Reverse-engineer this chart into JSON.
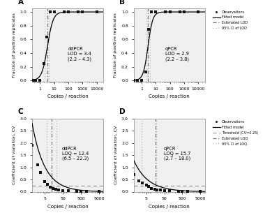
{
  "panel_A": {
    "label": "A",
    "type": "LOD",
    "method": "ddPCR",
    "lod": 3.4,
    "lod_ci_low": 2.2,
    "lod_ci_high": 4.3,
    "annotation": "ddPCR\nLOD = 3.4\n(2.2 – 4.3)",
    "obs_x": [
      0.3,
      0.5,
      1.0,
      1.0,
      2.0,
      3.0,
      5.0,
      10.0,
      50.0,
      100.0,
      500.0,
      1000.0,
      10000.0
    ],
    "obs_y": [
      0.0,
      0.0,
      0.0,
      0.0,
      0.25,
      0.63,
      1.0,
      1.0,
      1.0,
      1.0,
      1.0,
      1.0,
      1.0
    ],
    "xlim_log": [
      0.28,
      30000
    ],
    "xticks": [
      1,
      10,
      100,
      1000,
      10000
    ],
    "xlabel": "Copies / reaction",
    "ylabel": "Fraction of positive replicates",
    "ylim": [
      -0.02,
      1.05
    ],
    "yticks": [
      0.0,
      0.2,
      0.4,
      0.6,
      0.8,
      1.0
    ],
    "logistic_k": 5.0,
    "ann_x": 0.5,
    "ann_y": 0.38
  },
  "panel_B": {
    "label": "B",
    "type": "LOD",
    "method": "qPCR",
    "lod": 2.9,
    "lod_ci_low": 2.2,
    "lod_ci_high": 3.8,
    "annotation": "qPCR\nLOD = 2.9\n(2.2 – 3.8)",
    "obs_x": [
      0.3,
      0.5,
      1.0,
      1.0,
      2.0,
      3.0,
      5.0,
      10.0,
      50.0,
      100.0,
      500.0,
      1000.0,
      10000.0
    ],
    "obs_y": [
      0.0,
      0.0,
      0.0,
      0.0,
      0.12,
      0.75,
      1.0,
      1.0,
      1.0,
      1.0,
      1.0,
      1.0,
      1.0
    ],
    "xlim_log": [
      0.28,
      30000
    ],
    "xticks": [
      1,
      10,
      100,
      1000,
      10000
    ],
    "xlabel": "Copies / reaction",
    "ylabel": "Fraction of positive replicates",
    "ylim": [
      -0.02,
      1.05
    ],
    "yticks": [
      0.0,
      0.2,
      0.4,
      0.6,
      0.8,
      1.0
    ],
    "logistic_k": 6.0,
    "ann_x": 0.44,
    "ann_y": 0.38,
    "legend_items": [
      "Observations",
      "Fitted model",
      "Estimated LOD",
      "95% CI of LOD"
    ]
  },
  "panel_C": {
    "label": "C",
    "type": "LOQ",
    "method": "ddPCR",
    "loq": 12.4,
    "loq_ci_low": 6.5,
    "loq_ci_high": 22.3,
    "threshold": 0.25,
    "annotation": "ddPCR\nLOQ = 12.4\n(6.5 – 22.3)",
    "obs_x": [
      1,
      2,
      3,
      5,
      7,
      10,
      15,
      20,
      30,
      50,
      100,
      300,
      500,
      1000,
      5000
    ],
    "obs_y": [
      1.9,
      1.1,
      0.78,
      0.42,
      0.3,
      0.18,
      0.12,
      0.1,
      0.08,
      0.055,
      0.04,
      0.025,
      0.02,
      0.015,
      0.008
    ],
    "xlim_log": [
      1.0,
      9000
    ],
    "xticks": [
      5,
      50,
      500,
      5000
    ],
    "xlabel": "Copies / reaction",
    "ylabel": "Coefficient of variation, CV",
    "ylim": [
      0,
      3.0
    ],
    "yticks": [
      0.0,
      0.5,
      1.0,
      1.5,
      2.0,
      2.5,
      3.0
    ],
    "cv_scale": 2.8,
    "cv_power": 0.62,
    "ann_x": 0.42,
    "ann_y": 0.52
  },
  "panel_D": {
    "label": "D",
    "type": "LOQ",
    "method": "qPCR",
    "loq": 15.7,
    "loq_ci_low": 2.7,
    "loq_ci_high": 18.0,
    "threshold": 0.25,
    "annotation": "qPCR\nLOQ = 15.7\n(2.7 – 18.0)",
    "obs_x": [
      1,
      2,
      3,
      5,
      7,
      10,
      15,
      20,
      30,
      50,
      100,
      300,
      500,
      1000,
      5000
    ],
    "obs_y": [
      0.7,
      0.45,
      0.35,
      0.27,
      0.22,
      0.12,
      0.1,
      0.08,
      0.06,
      0.045,
      0.035,
      0.025,
      0.02,
      0.015,
      0.01
    ],
    "xlim_log": [
      1.0,
      9000
    ],
    "xticks": [
      5,
      50,
      500,
      5000
    ],
    "xlabel": "Copies / reaction",
    "ylabel": "Coefficient of variation, CV",
    "ylim": [
      0,
      3.0
    ],
    "yticks": [
      0.0,
      0.5,
      1.0,
      1.5,
      2.0,
      2.5,
      3.0
    ],
    "cv_scale": 1.3,
    "cv_power": 0.55,
    "ann_x": 0.42,
    "ann_y": 0.52,
    "legend_items": [
      "Observations",
      "Fitted model",
      "Threshold (CV=0.25)",
      "Estimated LOQ",
      "95% CI of LOQ"
    ]
  },
  "colors": {
    "fitted": "#000000",
    "lod_line": "#777777",
    "ci_line": "#bbbbbb",
    "threshold": "#999999",
    "obs_marker": "#111111",
    "bg": "#f0f0f0"
  }
}
